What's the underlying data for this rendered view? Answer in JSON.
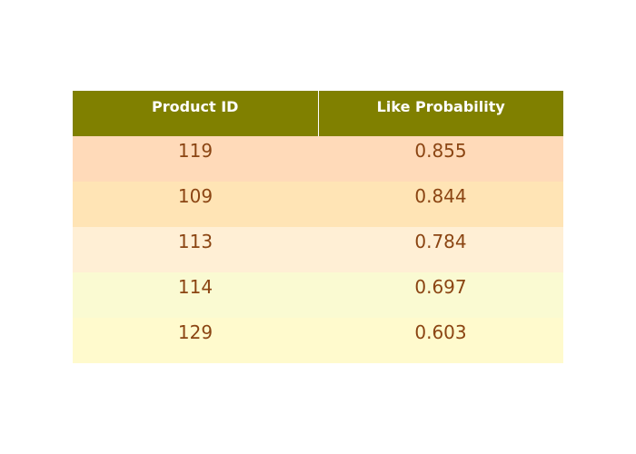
{
  "chart_data": {
    "type": "table",
    "columns": [
      "Product ID",
      "Like Probability"
    ],
    "rows": [
      [
        "119",
        "0.855"
      ],
      [
        "109",
        "0.844"
      ],
      [
        "113",
        "0.784"
      ],
      [
        "114",
        "0.697"
      ],
      [
        "129",
        "0.603"
      ]
    ],
    "colors": {
      "header_bg": "#808000",
      "header_text": "#ffffff",
      "cell_text": "#8b4513",
      "row_bg": [
        "#ffdab9",
        "#ffe4b5",
        "#ffefd5",
        "#fafad2",
        "#fffacd"
      ]
    }
  }
}
